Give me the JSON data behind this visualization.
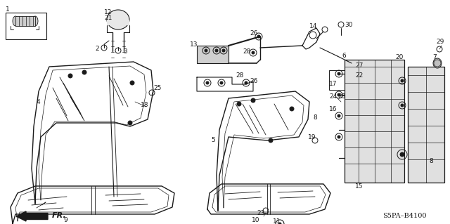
{
  "background_color": "#ffffff",
  "diagram_code": "S5PA–B4100",
  "fr_label": "FR.",
  "figsize": [
    6.4,
    3.19
  ],
  "dpi": 100
}
